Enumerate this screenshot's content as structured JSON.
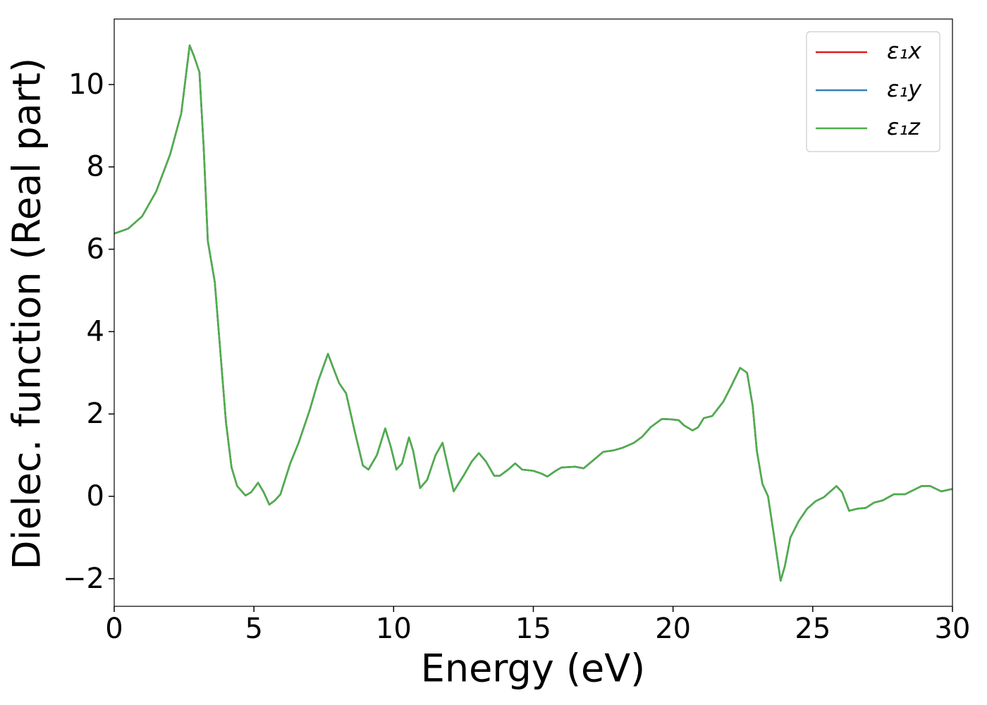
{
  "chart_data": {
    "type": "line",
    "xlabel": "Energy (eV)",
    "ylabel": "Dielec. function (Real part)",
    "xlim": [
      0,
      30
    ],
    "xticks": [
      0,
      5,
      10,
      15,
      20,
      25,
      30
    ],
    "ylim": [
      -2.67,
      11.59
    ],
    "yticks": [
      {
        "value": -2,
        "label": "−2"
      },
      0,
      2,
      4,
      6,
      8,
      10
    ],
    "legend": "upper right",
    "x": [
      0,
      0.5,
      1.0,
      1.5,
      2.0,
      2.4,
      2.7,
      2.85,
      3.05,
      3.2,
      3.35,
      3.6,
      3.8,
      4.0,
      4.2,
      4.4,
      4.7,
      4.9,
      5.15,
      5.35,
      5.55,
      5.75,
      5.95,
      6.3,
      6.6,
      7.0,
      7.3,
      7.65,
      7.85,
      8.05,
      8.3,
      8.6,
      8.9,
      9.1,
      9.4,
      9.7,
      9.9,
      10.1,
      10.3,
      10.55,
      10.7,
      10.95,
      11.2,
      11.5,
      11.75,
      11.95,
      12.15,
      12.5,
      12.8,
      13.05,
      13.3,
      13.6,
      13.8,
      14.1,
      14.35,
      14.6,
      15.0,
      15.3,
      15.5,
      15.8,
      16.0,
      16.5,
      16.8,
      17.1,
      17.5,
      17.9,
      18.2,
      18.6,
      18.9,
      19.2,
      19.6,
      19.9,
      20.2,
      20.4,
      20.7,
      20.9,
      21.1,
      21.4,
      21.8,
      22.1,
      22.4,
      22.65,
      22.85,
      23.0,
      23.2,
      23.4,
      23.6,
      23.85,
      24.0,
      24.2,
      24.5,
      24.8,
      25.1,
      25.4,
      25.85,
      26.05,
      26.3,
      26.6,
      26.9,
      27.2,
      27.5,
      27.9,
      28.3,
      28.6,
      28.9,
      29.2,
      29.6,
      30
    ],
    "series": [
      {
        "name": "ε₁x",
        "color": "#e41a1c",
        "values": [
          6.38,
          6.5,
          6.8,
          7.4,
          8.3,
          9.3,
          10.95,
          10.7,
          10.3,
          8.5,
          6.2,
          5.2,
          3.5,
          1.8,
          0.7,
          0.25,
          0.02,
          0.1,
          0.33,
          0.1,
          -0.2,
          -0.1,
          0.05,
          0.8,
          1.3,
          2.1,
          2.8,
          3.46,
          3.1,
          2.75,
          2.5,
          1.6,
          0.75,
          0.65,
          1.0,
          1.65,
          1.2,
          0.65,
          0.8,
          1.43,
          1.1,
          0.2,
          0.4,
          1.0,
          1.3,
          0.7,
          0.12,
          0.5,
          0.85,
          1.05,
          0.85,
          0.5,
          0.5,
          0.65,
          0.8,
          0.65,
          0.62,
          0.55,
          0.48,
          0.62,
          0.7,
          0.72,
          0.68,
          0.85,
          1.08,
          1.12,
          1.18,
          1.3,
          1.45,
          1.68,
          1.88,
          1.87,
          1.85,
          1.72,
          1.6,
          1.68,
          1.9,
          1.95,
          2.3,
          2.7,
          3.12,
          3.0,
          2.2,
          1.1,
          0.3,
          0.0,
          -0.9,
          -2.05,
          -1.7,
          -1.0,
          -0.6,
          -0.3,
          -0.12,
          -0.02,
          0.25,
          0.1,
          -0.35,
          -0.3,
          -0.28,
          -0.15,
          -0.1,
          0.05,
          0.05,
          0.15,
          0.25,
          0.25,
          0.12,
          0.18
        ]
      },
      {
        "name": "ε₁y",
        "color": "#377eb8",
        "values": [
          6.38,
          6.5,
          6.8,
          7.4,
          8.3,
          9.3,
          10.95,
          10.7,
          10.3,
          8.5,
          6.2,
          5.2,
          3.5,
          1.8,
          0.7,
          0.25,
          0.02,
          0.1,
          0.33,
          0.1,
          -0.2,
          -0.1,
          0.05,
          0.8,
          1.3,
          2.1,
          2.8,
          3.46,
          3.1,
          2.75,
          2.5,
          1.6,
          0.75,
          0.65,
          1.0,
          1.65,
          1.2,
          0.65,
          0.8,
          1.43,
          1.1,
          0.2,
          0.4,
          1.0,
          1.3,
          0.7,
          0.12,
          0.5,
          0.85,
          1.05,
          0.85,
          0.5,
          0.5,
          0.65,
          0.8,
          0.65,
          0.62,
          0.55,
          0.48,
          0.62,
          0.7,
          0.72,
          0.68,
          0.85,
          1.08,
          1.12,
          1.18,
          1.3,
          1.45,
          1.68,
          1.88,
          1.87,
          1.85,
          1.72,
          1.6,
          1.68,
          1.9,
          1.95,
          2.3,
          2.7,
          3.12,
          3.0,
          2.2,
          1.1,
          0.3,
          0.0,
          -0.9,
          -2.05,
          -1.7,
          -1.0,
          -0.6,
          -0.3,
          -0.12,
          -0.02,
          0.25,
          0.1,
          -0.35,
          -0.3,
          -0.28,
          -0.15,
          -0.1,
          0.05,
          0.05,
          0.15,
          0.25,
          0.25,
          0.12,
          0.18
        ]
      },
      {
        "name": "ε₁z",
        "color": "#4daf4a",
        "values": [
          6.38,
          6.5,
          6.8,
          7.4,
          8.3,
          9.3,
          10.95,
          10.7,
          10.3,
          8.5,
          6.2,
          5.2,
          3.5,
          1.8,
          0.7,
          0.25,
          0.02,
          0.1,
          0.33,
          0.1,
          -0.2,
          -0.1,
          0.05,
          0.8,
          1.3,
          2.1,
          2.8,
          3.46,
          3.1,
          2.75,
          2.5,
          1.6,
          0.75,
          0.65,
          1.0,
          1.65,
          1.2,
          0.65,
          0.8,
          1.43,
          1.1,
          0.2,
          0.4,
          1.0,
          1.3,
          0.7,
          0.12,
          0.5,
          0.85,
          1.05,
          0.85,
          0.5,
          0.5,
          0.65,
          0.8,
          0.65,
          0.62,
          0.55,
          0.48,
          0.62,
          0.7,
          0.72,
          0.68,
          0.85,
          1.08,
          1.12,
          1.18,
          1.3,
          1.45,
          1.68,
          1.88,
          1.87,
          1.85,
          1.72,
          1.6,
          1.68,
          1.9,
          1.95,
          2.3,
          2.7,
          3.12,
          3.0,
          2.2,
          1.1,
          0.3,
          0.0,
          -0.9,
          -2.05,
          -1.7,
          -1.0,
          -0.6,
          -0.3,
          -0.12,
          -0.02,
          0.25,
          0.1,
          -0.35,
          -0.3,
          -0.28,
          -0.15,
          -0.1,
          0.05,
          0.05,
          0.15,
          0.25,
          0.25,
          0.12,
          0.18
        ]
      }
    ]
  }
}
